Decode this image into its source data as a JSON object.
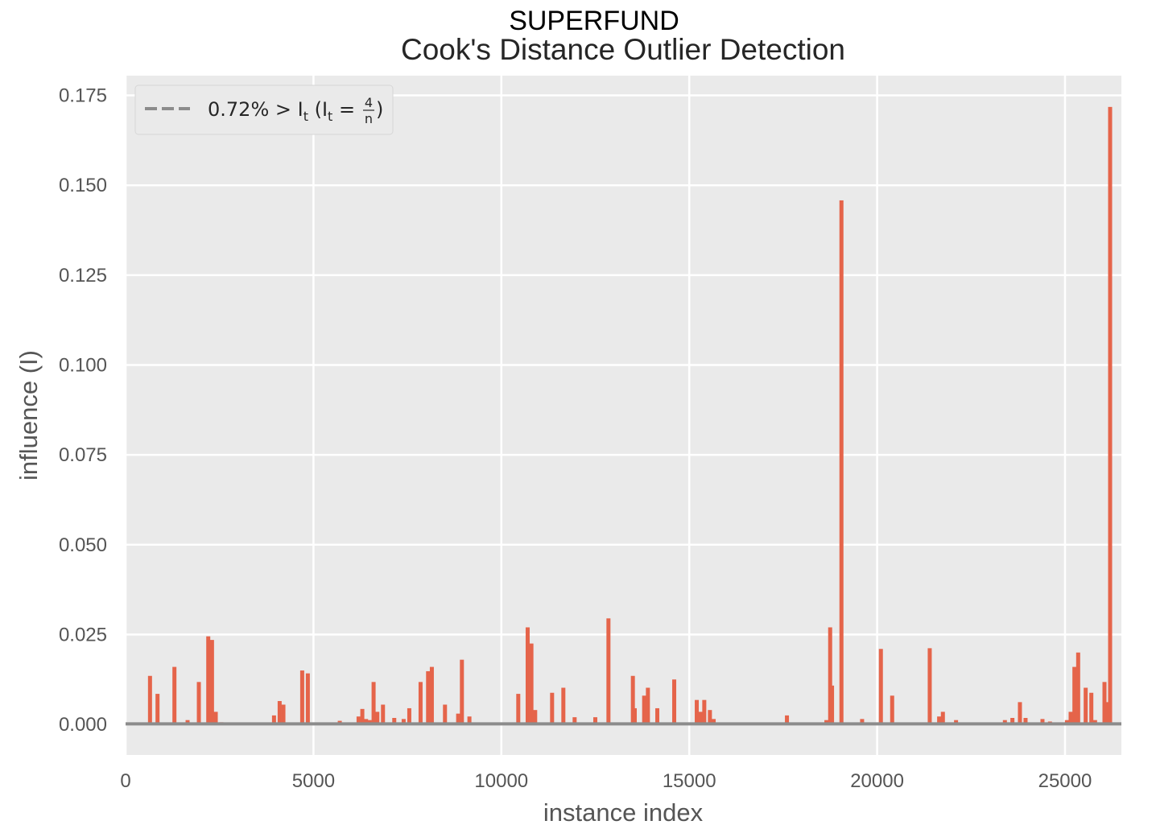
{
  "chart_data": {
    "type": "bar",
    "suptitle": "SUPERFUND",
    "title": "Cook's Distance Outlier Detection",
    "xlabel": "instance index",
    "ylabel": "influence (I)",
    "xlim": [
      0,
      26500
    ],
    "ylim": [
      -0.0085,
      0.1805
    ],
    "xticks": [
      0,
      5000,
      10000,
      15000,
      20000,
      25000
    ],
    "xtick_labels": [
      "0",
      "5000",
      "10000",
      "15000",
      "20000",
      "25000"
    ],
    "yticks": [
      0.0,
      0.025,
      0.05,
      0.075,
      0.1,
      0.125,
      0.15,
      0.175
    ],
    "ytick_labels": [
      "0.000",
      "0.025",
      "0.050",
      "0.075",
      "0.100",
      "0.125",
      "0.150",
      "0.175"
    ],
    "grid": true,
    "legend_position": "top-left",
    "legend": {
      "label": "0.72% > I",
      "sub_t": "t",
      "paren_open": " (I",
      "equals": " = ",
      "frac_num": "4",
      "frac_den": "n",
      "paren_close": ")"
    },
    "threshold": 0.00015,
    "colors": {
      "bars": "#E5644A",
      "threshold": "#8C8C8C",
      "background": "#EAEAEA",
      "grid": "#FFFFFF"
    },
    "x": [
      250,
      650,
      850,
      1300,
      1650,
      1950,
      2200,
      2300,
      2400,
      2550,
      3500,
      3950,
      4100,
      4200,
      4700,
      4850,
      5700,
      6200,
      6300,
      6400,
      6500,
      6600,
      6700,
      6850,
      7150,
      7400,
      7550,
      7850,
      8050,
      8150,
      8500,
      8850,
      8950,
      9150,
      10450,
      10700,
      10800,
      10900,
      11350,
      11650,
      11950,
      12500,
      12850,
      13500,
      13550,
      13800,
      13900,
      14150,
      14600,
      15200,
      15300,
      15400,
      15550,
      15650,
      17600,
      18200,
      18650,
      18750,
      18800,
      19050,
      19600,
      20100,
      20400,
      21400,
      21650,
      21750,
      22100,
      23400,
      23600,
      23800,
      23950,
      24400,
      24600,
      25050,
      25150,
      25250,
      25350,
      25550,
      25700,
      25800,
      26050,
      26150,
      26200
    ],
    "values": [
      0.0005,
      0.0135,
      0.0085,
      0.016,
      0.0012,
      0.0118,
      0.0245,
      0.0235,
      0.0035,
      0.0006,
      0.0005,
      0.0025,
      0.0065,
      0.0055,
      0.015,
      0.0142,
      0.001,
      0.0022,
      0.0043,
      0.0015,
      0.0012,
      0.0118,
      0.0035,
      0.0055,
      0.0018,
      0.0015,
      0.0045,
      0.0118,
      0.0148,
      0.016,
      0.0055,
      0.003,
      0.018,
      0.0022,
      0.0085,
      0.027,
      0.0225,
      0.004,
      0.0088,
      0.0102,
      0.002,
      0.002,
      0.0295,
      0.0135,
      0.0045,
      0.008,
      0.0102,
      0.0045,
      0.0125,
      0.0068,
      0.0035,
      0.0068,
      0.004,
      0.0015,
      0.0025,
      0.0005,
      0.0012,
      0.027,
      0.0108,
      0.1458,
      0.0015,
      0.021,
      0.008,
      0.0212,
      0.0022,
      0.0035,
      0.0012,
      0.0012,
      0.0018,
      0.0062,
      0.0018,
      0.0015,
      0.0008,
      0.0012,
      0.0035,
      0.016,
      0.02,
      0.0102,
      0.0088,
      0.0012,
      0.0118,
      0.0062,
      0.1718
    ]
  }
}
